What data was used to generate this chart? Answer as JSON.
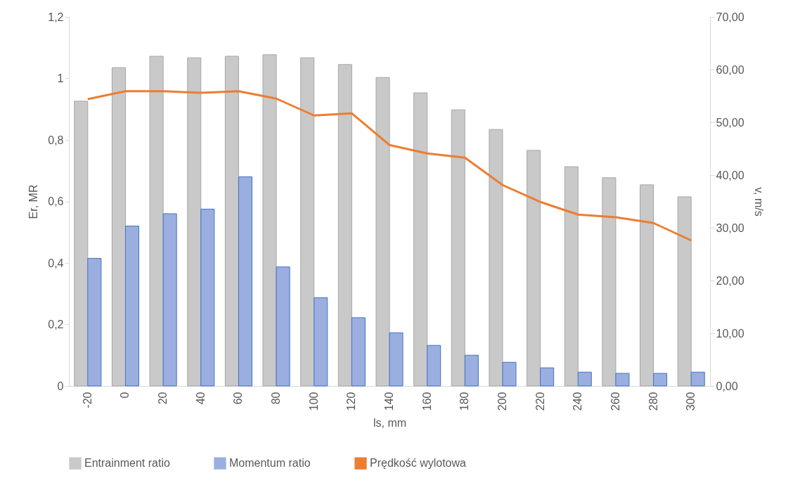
{
  "chart_data": {
    "type": "bar",
    "xlabel": "ls, mm",
    "ylabel": "Er, MR",
    "y2label": "v, m/s",
    "categories": [
      "-20",
      "0",
      "20",
      "40",
      "60",
      "80",
      "100",
      "120",
      "140",
      "160",
      "180",
      "200",
      "220",
      "240",
      "260",
      "280",
      "300"
    ],
    "series": [
      {
        "name": "Entrainment ratio",
        "color": "#c9c9c9",
        "values": [
          0.926,
          1.035,
          1.072,
          1.067,
          1.072,
          1.077,
          1.067,
          1.045,
          1.003,
          0.953,
          0.898,
          0.834,
          0.766,
          0.713,
          0.677,
          0.654,
          0.615
        ]
      },
      {
        "name": "Momentum ratio",
        "color": "#9aaee0",
        "values": [
          0.415,
          0.52,
          0.56,
          0.575,
          0.68,
          0.387,
          0.287,
          0.222,
          0.173,
          0.132,
          0.1,
          0.077,
          0.059,
          0.045,
          0.041,
          0.041,
          0.045
        ]
      },
      {
        "name": "Prędkość wylotowa",
        "type": "line",
        "axis": "y2",
        "color": "#ed7d31",
        "values": [
          54.4,
          55.9,
          55.9,
          55.6,
          55.9,
          54.5,
          51.3,
          51.7,
          45.7,
          44.1,
          43.3,
          38.1,
          34.9,
          32.5,
          32.0,
          30.9,
          27.6
        ]
      }
    ],
    "ylim": [
      0,
      1.2
    ],
    "yticks": [
      0,
      {
        "value": 0.2,
        "label": "0,2"
      },
      {
        "value": 0.4,
        "label": "0,4"
      },
      {
        "value": 0.6,
        "label": "0,6"
      },
      {
        "value": 0.8,
        "label": "0,8"
      },
      1,
      {
        "value": 1.2,
        "label": "1,2"
      }
    ],
    "y2lim": [
      0,
      70
    ],
    "y2ticks": [
      {
        "value": 0,
        "label": "0,00"
      },
      {
        "value": 10,
        "label": "10,00"
      },
      {
        "value": 20,
        "label": "20,00"
      },
      {
        "value": 30,
        "label": "30,00"
      },
      {
        "value": 40,
        "label": "40,00"
      },
      {
        "value": 50,
        "label": "50,00"
      },
      {
        "value": 60,
        "label": "60,00"
      },
      {
        "value": 70,
        "label": "70,00"
      }
    ],
    "grid": false,
    "legend": "bottom"
  }
}
